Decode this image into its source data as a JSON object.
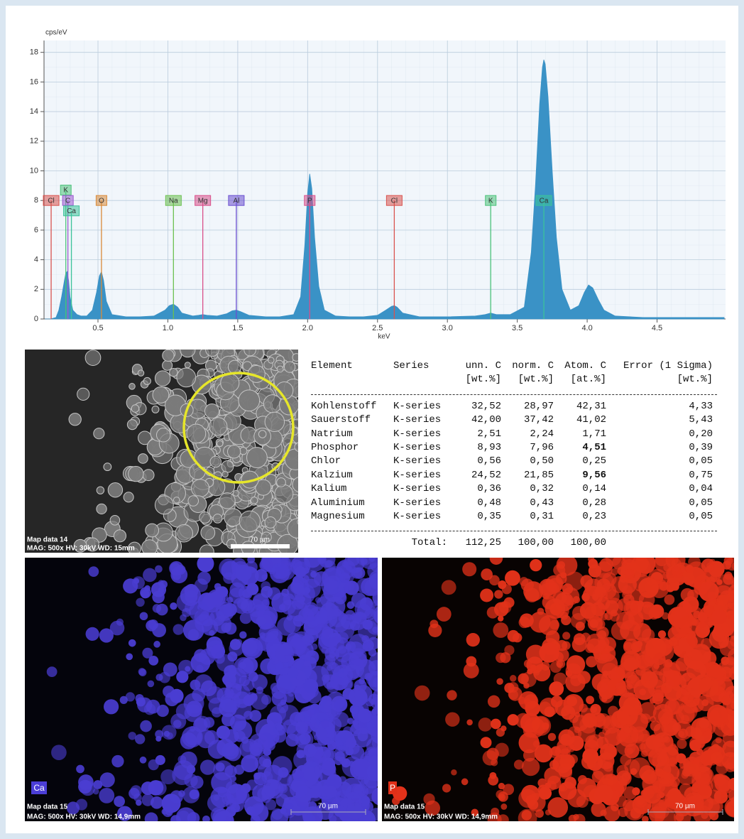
{
  "chart_data": {
    "type": "area",
    "y_label": "cps/eV",
    "x_label": "keV",
    "color": "#3a92c6",
    "xlim": [
      0.114,
      4.99
    ],
    "ylim": [
      0,
      18.8
    ],
    "xticks": [
      0.5,
      {
        "value": 1,
        "label": "1.0"
      },
      1.5,
      {
        "value": 2,
        "label": "2.0"
      },
      2.5,
      {
        "value": 3,
        "label": "3.0"
      },
      3.5,
      {
        "value": 4,
        "label": "4.0"
      },
      4.5
    ],
    "yticks": [
      0,
      2,
      4,
      6,
      8,
      10,
      12,
      14,
      16,
      18
    ],
    "grid": true,
    "x": [
      0.12,
      0.16,
      0.2,
      0.22,
      0.24,
      0.26,
      0.27,
      0.28,
      0.29,
      0.3,
      0.32,
      0.35,
      0.38,
      0.42,
      0.46,
      0.49,
      0.51,
      0.525,
      0.54,
      0.56,
      0.6,
      0.7,
      0.8,
      0.9,
      0.98,
      1.01,
      1.04,
      1.07,
      1.1,
      1.18,
      1.22,
      1.25,
      1.28,
      1.35,
      1.42,
      1.46,
      1.49,
      1.52,
      1.58,
      1.7,
      1.8,
      1.9,
      1.95,
      1.98,
      2.0,
      2.015,
      2.03,
      2.05,
      2.08,
      2.12,
      2.2,
      2.3,
      2.4,
      2.5,
      2.56,
      2.6,
      2.62,
      2.64,
      2.68,
      2.8,
      3.0,
      3.2,
      3.27,
      3.31,
      3.35,
      3.45,
      3.55,
      3.6,
      3.63,
      3.66,
      3.68,
      3.69,
      3.7,
      3.72,
      3.75,
      3.78,
      3.82,
      3.88,
      3.94,
      3.98,
      4.01,
      4.04,
      4.08,
      4.12,
      4.2,
      4.4,
      4.6,
      4.8,
      4.98
    ],
    "values": [
      0,
      0,
      0.1,
      0.6,
      1.5,
      2.6,
      3.1,
      3.2,
      2.6,
      1.5,
      0.6,
      0.3,
      0.2,
      0.2,
      0.6,
      1.8,
      2.9,
      3.2,
      2.6,
      1.2,
      0.3,
      0.15,
      0.15,
      0.2,
      0.6,
      0.9,
      1.0,
      0.8,
      0.4,
      0.2,
      0.25,
      0.3,
      0.25,
      0.2,
      0.35,
      0.55,
      0.6,
      0.5,
      0.25,
      0.15,
      0.15,
      0.3,
      1.5,
      5.0,
      8.5,
      9.8,
      8.8,
      5.5,
      2.2,
      0.6,
      0.2,
      0.15,
      0.15,
      0.25,
      0.6,
      0.85,
      0.9,
      0.8,
      0.4,
      0.15,
      0.15,
      0.2,
      0.3,
      0.4,
      0.3,
      0.3,
      0.8,
      4.5,
      9.0,
      14.5,
      17.0,
      17.5,
      17.2,
      15.0,
      10.0,
      5.5,
      2.0,
      0.6,
      0.9,
      1.8,
      2.3,
      2.1,
      1.3,
      0.6,
      0.2,
      0.1,
      0.1,
      0.1,
      0.1
    ],
    "markers": [
      {
        "label": "Cl",
        "x": 0.165,
        "y": 8,
        "color": "#d9534f"
      },
      {
        "label": "K",
        "x": 0.27,
        "y": 8.7,
        "color": "#4cc27a"
      },
      {
        "label": "C",
        "x": 0.285,
        "y": 8,
        "color": "#9b59d0"
      },
      {
        "label": "Ca",
        "x": 0.31,
        "y": 7.3,
        "color": "#3cc29a"
      },
      {
        "label": "O",
        "x": 0.525,
        "y": 8,
        "color": "#d98a3a"
      },
      {
        "label": "Na",
        "x": 1.04,
        "y": 8,
        "color": "#6cc050"
      },
      {
        "label": "Mg",
        "x": 1.25,
        "y": 8,
        "color": "#d9508a"
      },
      {
        "label": "Al",
        "x": 1.49,
        "y": 8,
        "color": "#6a4fd0"
      },
      {
        "label": "P",
        "x": 2.015,
        "y": 8,
        "color": "#d9508a"
      },
      {
        "label": "Cl",
        "x": 2.62,
        "y": 8,
        "color": "#d9534f"
      },
      {
        "label": "K",
        "x": 3.31,
        "y": 8,
        "color": "#4cc27a"
      },
      {
        "label": "Ca",
        "x": 3.69,
        "y": 8,
        "color": "#3cc29a"
      }
    ]
  },
  "table": {
    "columns": [
      {
        "name": "Element"
      },
      {
        "name": "Series"
      },
      {
        "name": "unn. C",
        "unit": "[wt.%]"
      },
      {
        "name": "norm. C",
        "unit": "[wt.%]"
      },
      {
        "name": "Atom. C",
        "unit": "[at.%]"
      },
      {
        "name": "Error (1 Sigma)",
        "unit": "[wt.%]"
      }
    ],
    "rows": [
      [
        "Kohlenstoff",
        "K-series",
        "32,52",
        "28,97",
        "42,31",
        "4,33"
      ],
      [
        "Sauerstoff",
        "K-series",
        "42,00",
        "37,42",
        "41,02",
        "5,43"
      ],
      [
        "Natrium",
        "K-series",
        "2,51",
        "2,24",
        "1,71",
        "0,20"
      ],
      [
        "Phosphor",
        "K-series",
        "8,93",
        "7,96",
        {
          "text": "4,51",
          "bold": true
        },
        "0,39"
      ],
      [
        "Chlor",
        "K-series",
        "0,56",
        "0,50",
        "0,25",
        "0,05"
      ],
      [
        "Kalzium",
        "K-series",
        "24,52",
        "21,85",
        {
          "text": "9,56",
          "bold": true
        },
        "0,75"
      ],
      [
        "Kalium",
        "K-series",
        "0,36",
        "0,32",
        "0,14",
        "0,04"
      ],
      [
        "Aluminium",
        "K-series",
        "0,48",
        "0,43",
        "0,28",
        "0,05"
      ],
      [
        "Magnesium",
        "K-series",
        "0,35",
        "0,31",
        "0,23",
        "0,05"
      ]
    ],
    "total": {
      "label": "Total:",
      "values": [
        "112,25",
        "100,00",
        "100,00"
      ]
    }
  },
  "images": [
    {
      "caption": "Map data 14",
      "settings": "MAG: 500x  HV: 30kV  WD: 15mm",
      "scale": "70 µm"
    },
    {
      "element": "Ca",
      "caption": "Map data 15",
      "settings": "MAG: 500x  HV: 30kV  WD: 14,9mm",
      "scale": "70 µm"
    },
    {
      "element": "P",
      "caption": "Map data 15",
      "settings": "MAG: 500x  HV: 30kV  WD: 14,9mm",
      "scale": "70 µm"
    }
  ]
}
